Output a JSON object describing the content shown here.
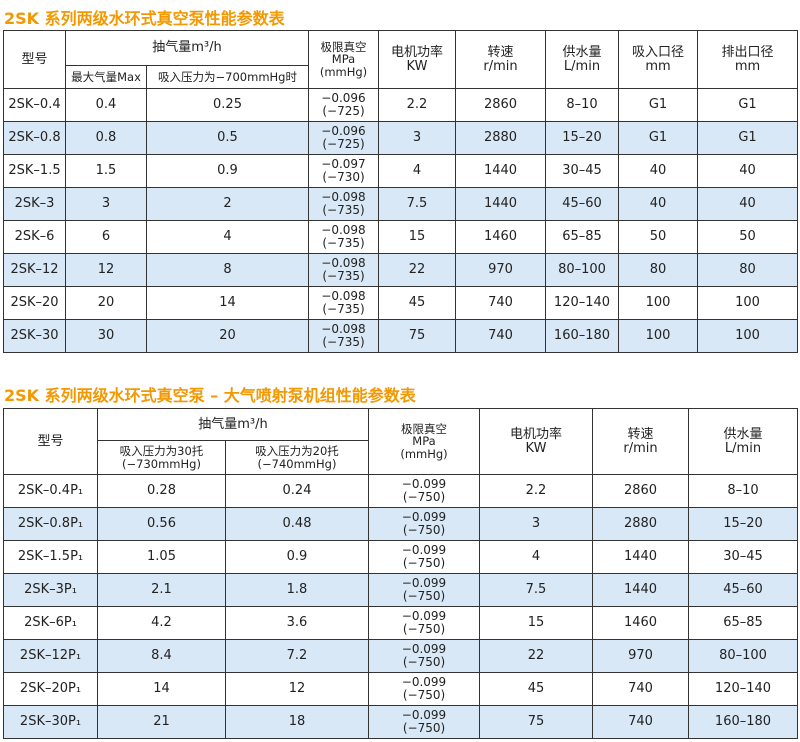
{
  "tables": [
    {
      "title": "2SK 系列两级水环式真空泵性能参数表",
      "header": {
        "model": "型号",
        "flow": "抽气量m³/h",
        "flow_sub": [
          "最大气量Max",
          "吸入压力为−700mmHg时"
        ],
        "vacuum": "极限真空\nMPa\n(mmHg)",
        "power": "电机功率\nKW",
        "speed": "转速\nr/min",
        "water": "供水量\nL/min",
        "inlet": "吸入口径\nmm",
        "outlet": "排出口径\nmm"
      },
      "rows": [
        [
          "2SK–0.4",
          "0.4",
          "0.25",
          "−0.096\n(−725)",
          "2.2",
          "2860",
          "8–10",
          "G1",
          "G1"
        ],
        [
          "2SK–0.8",
          "0.8",
          "0.5",
          "−0.096\n(−725)",
          "3",
          "2880",
          "15–20",
          "G1",
          "G1"
        ],
        [
          "2SK–1.5",
          "1.5",
          "0.9",
          "−0.097\n(−730)",
          "4",
          "1440",
          "30–45",
          "40",
          "40"
        ],
        [
          "2SK–3",
          "3",
          "2",
          "−0.098\n(−735)",
          "7.5",
          "1440",
          "45–60",
          "40",
          "40"
        ],
        [
          "2SK–6",
          "6",
          "4",
          "−0.098\n(−735)",
          "15",
          "1460",
          "65–85",
          "50",
          "50"
        ],
        [
          "2SK–12",
          "12",
          "8",
          "−0.098\n(−735)",
          "22",
          "970",
          "80–100",
          "80",
          "80"
        ],
        [
          "2SK–20",
          "20",
          "14",
          "−0.098\n(−735)",
          "45",
          "740",
          "120–140",
          "100",
          "100"
        ],
        [
          "2SK–30",
          "30",
          "20",
          "−0.098\n(−735)",
          "75",
          "740",
          "160–180",
          "100",
          "100"
        ]
      ]
    },
    {
      "title": "2SK 系列两级水环式真空泵 – 大气喷射泵机组性能参数表",
      "header": {
        "model": "型号",
        "flow": "抽气量m³/h",
        "flow_sub": [
          "吸入压力为30托\n(−730mmHg)",
          "吸入压力为20托\n(−740mmHg)"
        ],
        "vacuum": "极限真空\nMPa\n(mmHg)",
        "power": "电机功率\nKW",
        "speed": "转速\nr/min",
        "water": "供水量\nL/min"
      },
      "rows": [
        [
          "2SK–0.4P₁",
          "0.28",
          "0.24",
          "−0.099\n(−750)",
          "2.2",
          "2860",
          "8–10"
        ],
        [
          "2SK–0.8P₁",
          "0.56",
          "0.48",
          "−0.099\n(−750)",
          "3",
          "2880",
          "15–20"
        ],
        [
          "2SK–1.5P₁",
          "1.05",
          "0.9",
          "−0.099\n(−750)",
          "4",
          "1440",
          "30–45"
        ],
        [
          "2SK–3P₁",
          "2.1",
          "1.8",
          "−0.099\n(−750)",
          "7.5",
          "1440",
          "45–60"
        ],
        [
          "2SK–6P₁",
          "4.2",
          "3.6",
          "−0.099\n(−750)",
          "15",
          "1460",
          "65–85"
        ],
        [
          "2SK–12P₁",
          "8.4",
          "7.2",
          "−0.099\n(−750)",
          "22",
          "970",
          "80–100"
        ],
        [
          "2SK–20P₁",
          "14",
          "12",
          "−0.099\n(−750)",
          "45",
          "740",
          "120–140"
        ],
        [
          "2SK–30P₁",
          "21",
          "18",
          "−0.099\n(−750)",
          "75",
          "740",
          "160–180"
        ]
      ]
    }
  ]
}
